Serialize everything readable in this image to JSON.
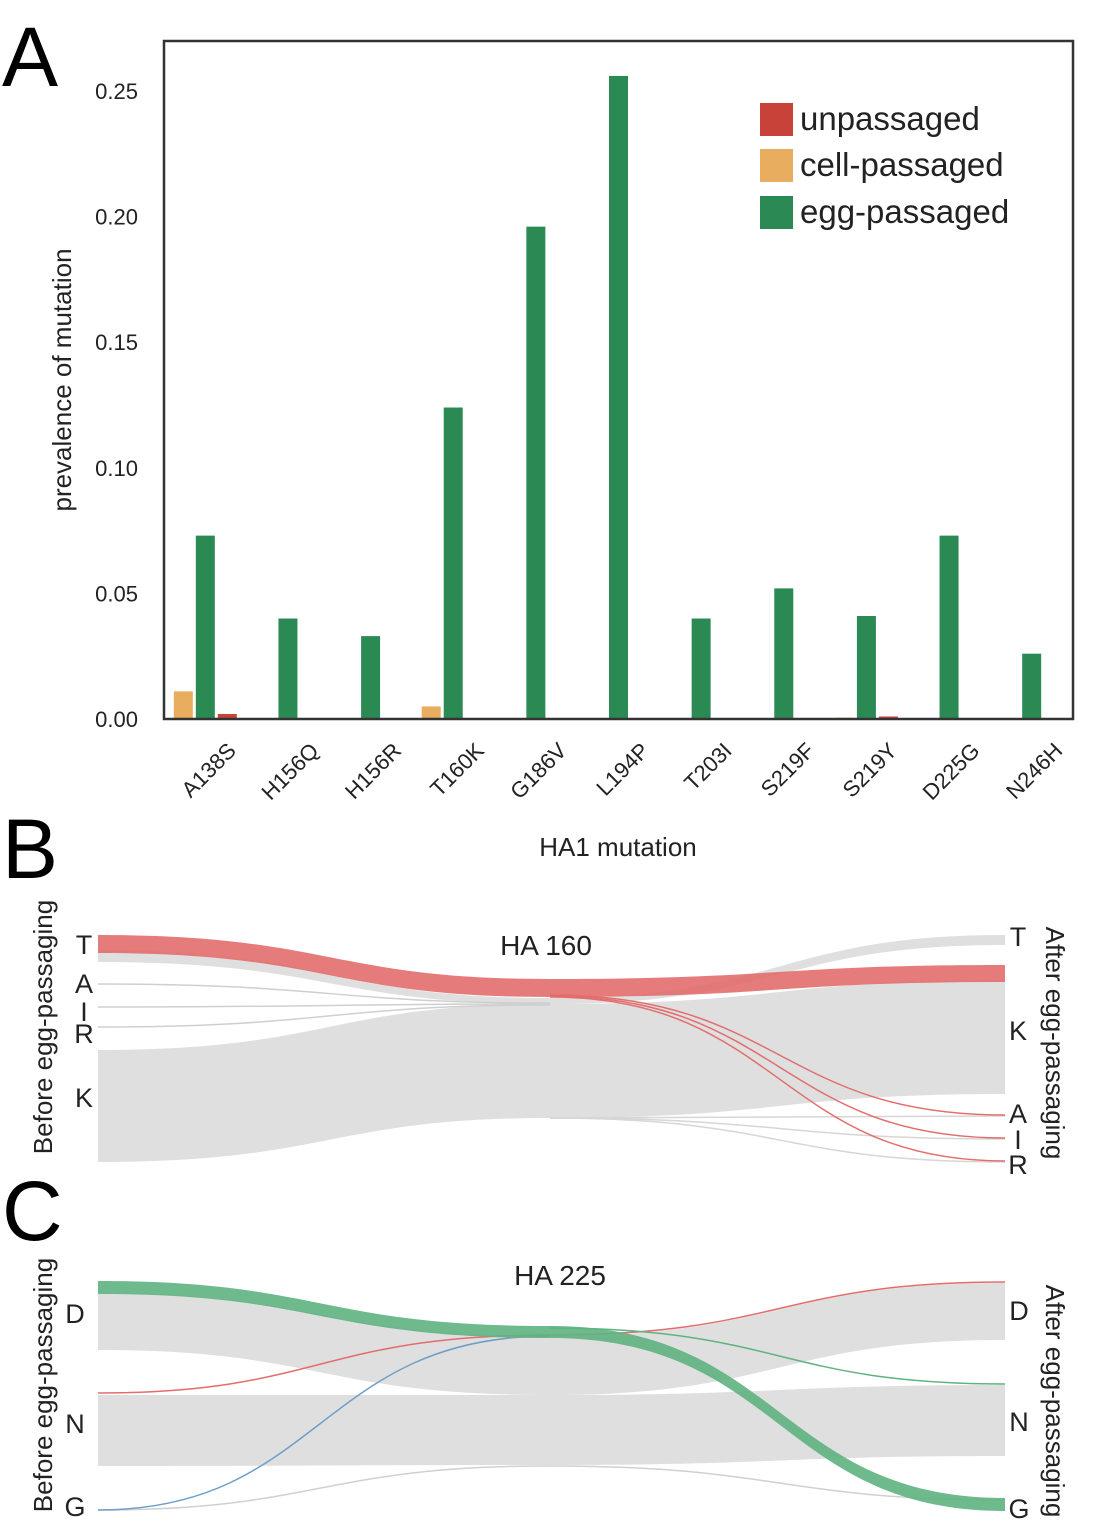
{
  "panels": {
    "a": "A",
    "b": "B",
    "c": "C"
  },
  "colors": {
    "unpassaged": "#c9423a",
    "cell_passaged": "#e8ad5e",
    "egg_passaged": "#2b8a54",
    "flow_grey": "#dcdcdc",
    "flow_red": "#e36d6d",
    "flow_green": "#5eb37f",
    "flow_blue": "#6f9fc7"
  },
  "chart_data": [
    {
      "type": "bar",
      "xlabel": "HA1 mutation",
      "ylabel": "prevalence of mutation",
      "ylim": [
        0,
        0.26
      ],
      "yticks": [
        "0.00",
        "0.05",
        "0.10",
        "0.15",
        "0.20",
        "0.25"
      ],
      "grid": false,
      "legend_position": "top-right",
      "categories": [
        "A138S",
        "H156Q",
        "H156R",
        "T160K",
        "G186V",
        "L194P",
        "T203I",
        "S219F",
        "S219Y",
        "D225G",
        "N246H"
      ],
      "series": [
        {
          "name": "unpassaged",
          "values": [
            0.002,
            0,
            0,
            0,
            0,
            0,
            0,
            0,
            0.001,
            0,
            0
          ]
        },
        {
          "name": "cell-passaged",
          "values": [
            0.011,
            0,
            0,
            0.005,
            0,
            0,
            0,
            0,
            0.0005,
            0,
            0
          ]
        },
        {
          "name": "egg-passaged",
          "values": [
            0.073,
            0.04,
            0.033,
            0.124,
            0.196,
            0.256,
            0.04,
            0.052,
            0.041,
            0.073,
            0.026
          ]
        }
      ]
    },
    {
      "type": "sankey",
      "title": "HA 160",
      "left_label": "Before egg-passaging",
      "right_label": "After egg-passaging",
      "left_nodes": [
        "T",
        "A",
        "I",
        "R",
        "K"
      ],
      "right_nodes": [
        "T",
        "K",
        "A",
        "I",
        "R"
      ]
    },
    {
      "type": "sankey",
      "title": "HA 225",
      "left_label": "Before egg-passaging",
      "right_label": "After egg-passaging",
      "left_nodes": [
        "D",
        "N",
        "G"
      ],
      "right_nodes": [
        "D",
        "N",
        "G"
      ]
    }
  ]
}
